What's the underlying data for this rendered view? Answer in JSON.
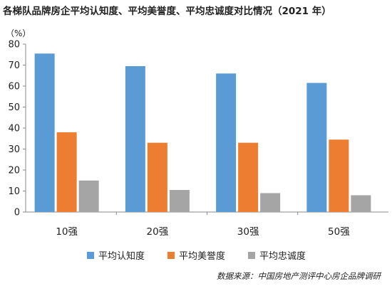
{
  "chart_data": {
    "type": "bar",
    "title": "各梯队品牌房企平均认知度、平均美誉度、平均忠诚度对比情况（2021 年）",
    "unit_label": "（%）",
    "categories": [
      "10强",
      "20强",
      "30强",
      "50强"
    ],
    "series": [
      {
        "name": "平均认知度",
        "color": "#5b9bd5",
        "values": [
          75.5,
          69.5,
          66.0,
          61.5
        ]
      },
      {
        "name": "平均美誉度",
        "color": "#ed7d31",
        "values": [
          38.0,
          33.0,
          33.0,
          34.5
        ]
      },
      {
        "name": "平均忠诚度",
        "color": "#a5a5a5",
        "values": [
          15.0,
          10.5,
          9.0,
          8.0
        ]
      }
    ],
    "ylim": [
      0,
      80
    ],
    "yticks": [
      0,
      10,
      20,
      30,
      40,
      50,
      60,
      70,
      80
    ],
    "grid": false,
    "legend_position": "bottom"
  },
  "source": "数据来源：中国房地产测评中心房企品牌调研"
}
